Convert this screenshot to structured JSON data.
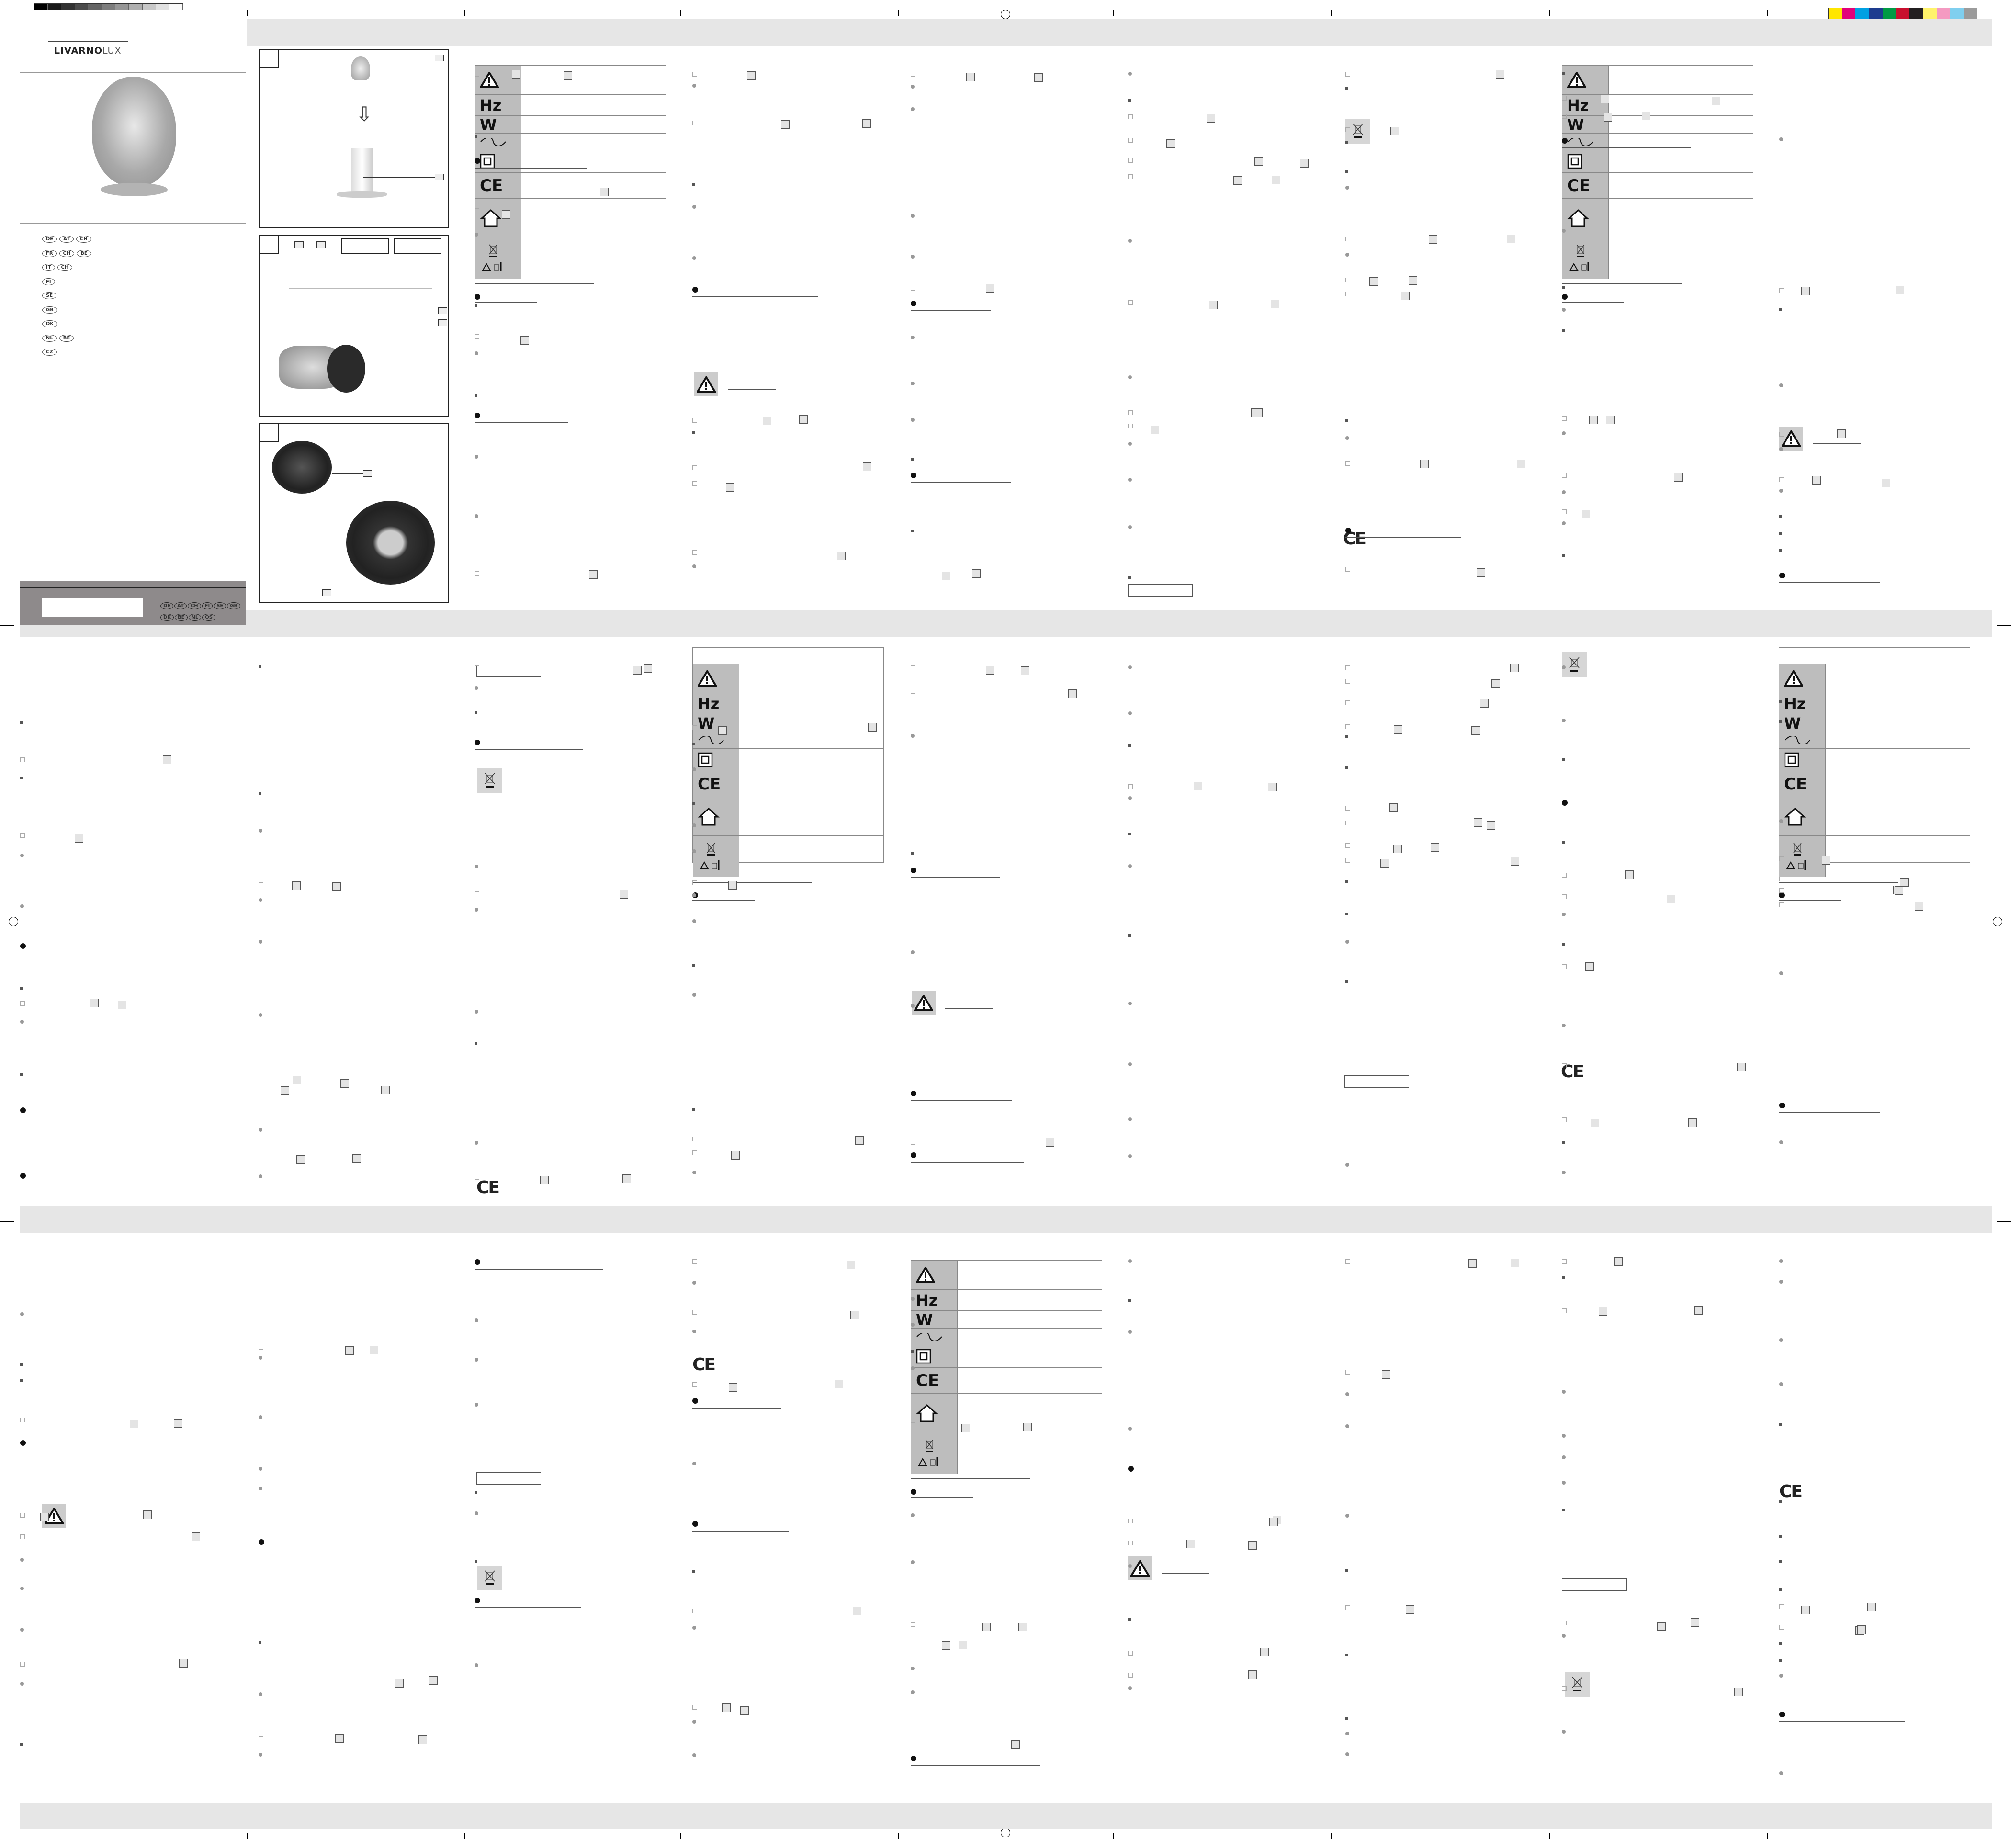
{
  "brand": {
    "logo_part1": "LIVARNO",
    "logo_part2": "LUX"
  },
  "cover": {
    "languages": [
      [
        "DE",
        "AT",
        "CH"
      ],
      [
        "FR",
        "CH",
        "BE"
      ],
      [
        "IT",
        "CH"
      ],
      [
        "FI"
      ],
      [
        "SE"
      ],
      [
        "GB"
      ],
      [
        "DK"
      ],
      [
        "NL",
        "BE"
      ],
      [
        "CZ"
      ]
    ],
    "footer_badges": [
      "DE",
      "AT",
      "CH",
      "FI",
      "SE",
      "GB",
      "DK",
      "BE",
      "NL",
      "OS"
    ]
  },
  "symbol_table": {
    "symbols": [
      {
        "icon": "warning-triangle-icon",
        "label": ""
      },
      {
        "icon": "hertz-icon",
        "label": "Hz"
      },
      {
        "icon": "watt-icon",
        "label": "W"
      },
      {
        "icon": "alternating-current-icon",
        "label": ""
      },
      {
        "icon": "protection-class-ii-icon",
        "label": ""
      },
      {
        "icon": "ce-mark-icon",
        "label": "CE"
      },
      {
        "icon": "indoor-use-house-icon",
        "label": ""
      },
      {
        "icon": "weee-recycling-icon",
        "label": ""
      }
    ]
  },
  "ce_mark": "CE",
  "colors": {
    "band": "#e6e6e6",
    "footer": "#8e8a8b",
    "symbol_cell": "#bdbdbd"
  },
  "color_bar": [
    "#ffe600",
    "#e2007a",
    "#00a0e3",
    "#1d3c8f",
    "#009a44",
    "#c8102e",
    "#231f20",
    "#fff36b",
    "#f49ac1",
    "#7fcfef",
    "#9b9b9b"
  ]
}
